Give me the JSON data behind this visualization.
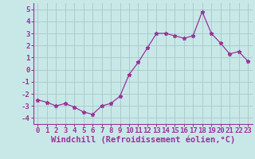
{
  "xlabel": "Windchill (Refroidissement éolien,°C)",
  "x_values": [
    0,
    1,
    2,
    3,
    4,
    5,
    6,
    7,
    8,
    9,
    10,
    11,
    12,
    13,
    14,
    15,
    16,
    17,
    18,
    19,
    20,
    21,
    22,
    23
  ],
  "y_values": [
    -2.5,
    -2.7,
    -3.0,
    -2.8,
    -3.1,
    -3.5,
    -3.7,
    -3.0,
    -2.8,
    -2.2,
    -0.4,
    0.6,
    1.8,
    3.0,
    3.0,
    2.8,
    2.6,
    2.8,
    4.8,
    3.0,
    2.2,
    1.3,
    1.5,
    0.7
  ],
  "ylim": [
    -4.5,
    5.5
  ],
  "yticks": [
    -4,
    -3,
    -2,
    -1,
    0,
    1,
    2,
    3,
    4,
    5
  ],
  "line_color": "#993399",
  "marker": "*",
  "bg_color": "#c8e8e8",
  "grid_color": "#aacccc",
  "tick_color": "#993399",
  "tick_fontsize": 6.5,
  "xlabel_fontsize": 7.5
}
